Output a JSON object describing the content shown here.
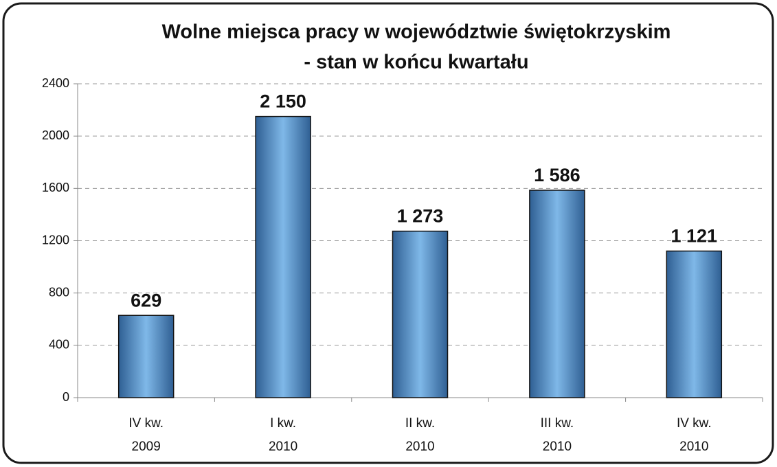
{
  "chart_data": {
    "type": "bar",
    "title": [
      "Wolne miejsca pracy w województwie świętokrzyskim",
      "- stan w końcu kwartału"
    ],
    "categories": [
      [
        "IV kw.",
        "2009"
      ],
      [
        "I kw.",
        "2010"
      ],
      [
        "II kw.",
        "2010"
      ],
      [
        "III kw.",
        "2010"
      ],
      [
        "IV kw.",
        "2010"
      ]
    ],
    "values": [
      629,
      2150,
      1273,
      1586,
      1121
    ],
    "value_labels": [
      "629",
      "2 150",
      "1 273",
      "1 586",
      "1 121"
    ],
    "color": "#7fb8e8",
    "ylim": [
      0,
      2400
    ],
    "yticks": [
      0,
      400,
      800,
      1200,
      1600,
      2000,
      2400
    ],
    "grid": true
  }
}
